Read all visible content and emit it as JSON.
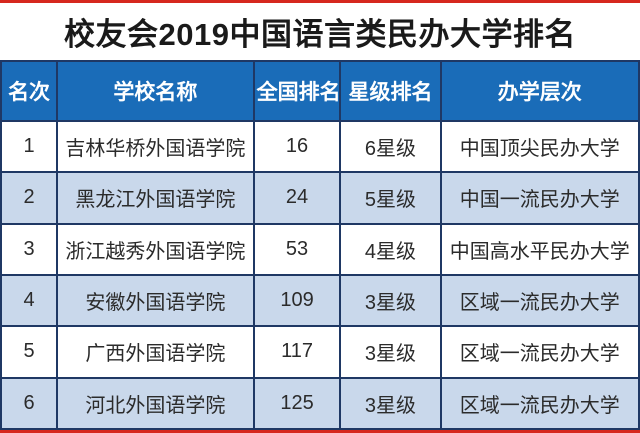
{
  "title": "校友会2019中国语言类民办大学排名",
  "colors": {
    "accent_red": "#d6281e",
    "header_blue": "#1a6cb8",
    "row_alt_blue": "#c9d8eb",
    "border_navy": "#1f3864",
    "title_text": "#1a1a1a",
    "cell_text": "#2b2b2b",
    "header_text": "#ffffff"
  },
  "chart_data": {
    "type": "table",
    "title": "校友会2019中国语言类民办大学排名",
    "columns": [
      "名次",
      "学校名称",
      "全国排名",
      "星级排名",
      "办学层次"
    ],
    "rows": [
      [
        "1",
        "吉林华桥外国语学院",
        "16",
        "6星级",
        "中国顶尖民办大学"
      ],
      [
        "2",
        "黑龙江外国语学院",
        "24",
        "5星级",
        "中国一流民办大学"
      ],
      [
        "3",
        "浙江越秀外国语学院",
        "53",
        "4星级",
        "中国高水平民办大学"
      ],
      [
        "4",
        "安徽外国语学院",
        "109",
        "3星级",
        "区域一流民办大学"
      ],
      [
        "5",
        "广西外国语学院",
        "117",
        "3星级",
        "区域一流民办大学"
      ],
      [
        "6",
        "河北外国语学院",
        "125",
        "3星级",
        "区域一流民办大学"
      ]
    ],
    "layout": {
      "row_striping": "odd rows white, even rows light blue",
      "grid": true,
      "header_position": "top"
    }
  }
}
